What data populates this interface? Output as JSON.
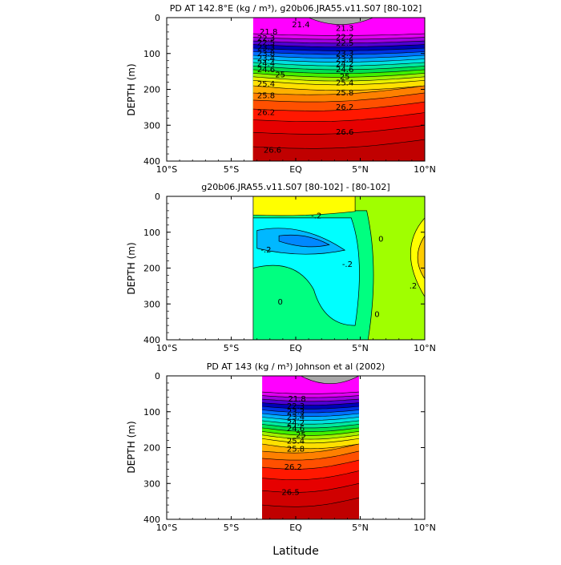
{
  "chart_data": [
    {
      "type": "heatmap",
      "title": "PD AT 142.8°E (kg / m³), g20b06.JRA55.v11.S07 [80-102]",
      "ylabel": "DEPTH (m)",
      "x_tick_labels": [
        "10°S",
        "5°S",
        "EQ",
        "5°N",
        "10°N"
      ],
      "x_ticks": [
        -10,
        -5,
        0,
        5,
        10
      ],
      "xlim": [
        -10,
        10
      ],
      "y_tick_labels": [
        "0",
        "100",
        "200",
        "300",
        "400"
      ],
      "y_ticks": [
        0,
        100,
        200,
        300,
        400
      ],
      "ylim": [
        0,
        400
      ],
      "data_lat_range": [
        -3.3,
        10
      ],
      "top_gray_region": {
        "lat_range": [
          1.0,
          6.0
        ],
        "max_depth": 25
      },
      "bands": [
        {
          "depth": 0,
          "color": "#ff00ff"
        },
        {
          "depth": 45,
          "color": "#e000f0"
        },
        {
          "depth": 55,
          "color": "#a000e0"
        },
        {
          "depth": 65,
          "color": "#5000d0"
        },
        {
          "depth": 75,
          "color": "#0000b8"
        },
        {
          "depth": 85,
          "color": "#0030e0"
        },
        {
          "depth": 95,
          "color": "#0070ff"
        },
        {
          "depth": 105,
          "color": "#00b0ff"
        },
        {
          "depth": 115,
          "color": "#00e0e0"
        },
        {
          "depth": 125,
          "color": "#00e8a0"
        },
        {
          "depth": 135,
          "color": "#00e050"
        },
        {
          "depth": 145,
          "color": "#40f000"
        },
        {
          "depth": 155,
          "color": "#a0f000"
        },
        {
          "depth": 165,
          "color": "#e8f000"
        },
        {
          "depth": 175,
          "color": "#ffe000"
        },
        {
          "depth": 190,
          "color": "#ffb000"
        },
        {
          "depth": 210,
          "color": "#ff8000"
        },
        {
          "depth": 230,
          "color": "#ff5000"
        },
        {
          "depth": 255,
          "color": "#ff1800"
        },
        {
          "depth": 285,
          "color": "#e60000"
        },
        {
          "depth": 320,
          "color": "#d00000"
        },
        {
          "depth": 360,
          "color": "#c00000"
        }
      ],
      "contour_labels": [
        {
          "lat": 0.4,
          "depth": 20,
          "text": "21.4"
        },
        {
          "lat": -2.1,
          "depth": 40,
          "text": "21.8"
        },
        {
          "lat": -2.3,
          "depth": 58,
          "text": "22.3"
        },
        {
          "lat": -2.3,
          "depth": 70,
          "text": "22.5"
        },
        {
          "lat": -2.3,
          "depth": 84,
          "text": "23.3"
        },
        {
          "lat": -2.3,
          "depth": 100,
          "text": "23.8"
        },
        {
          "lat": -2.3,
          "depth": 114,
          "text": "23.4"
        },
        {
          "lat": -2.3,
          "depth": 128,
          "text": "24.4"
        },
        {
          "lat": -2.3,
          "depth": 145,
          "text": "24.6"
        },
        {
          "lat": -1.2,
          "depth": 160,
          "text": "25"
        },
        {
          "lat": -2.3,
          "depth": 185,
          "text": "25.4"
        },
        {
          "lat": -2.3,
          "depth": 218,
          "text": "25.8"
        },
        {
          "lat": -2.3,
          "depth": 265,
          "text": "26.2"
        },
        {
          "lat": -1.8,
          "depth": 370,
          "text": "26.6"
        },
        {
          "lat": 3.8,
          "depth": 30,
          "text": "21.3"
        },
        {
          "lat": 3.8,
          "depth": 55,
          "text": "22.2"
        },
        {
          "lat": 3.8,
          "depth": 72,
          "text": "22.5"
        },
        {
          "lat": 3.8,
          "depth": 100,
          "text": "23.3"
        },
        {
          "lat": 3.8,
          "depth": 116,
          "text": "23.4"
        },
        {
          "lat": 3.8,
          "depth": 130,
          "text": "24.2"
        },
        {
          "lat": 3.8,
          "depth": 145,
          "text": "24.6"
        },
        {
          "lat": 3.8,
          "depth": 165,
          "text": "25"
        },
        {
          "lat": 3.8,
          "depth": 182,
          "text": "25.4"
        },
        {
          "lat": 3.8,
          "depth": 210,
          "text": "25.8"
        },
        {
          "lat": 3.8,
          "depth": 250,
          "text": "26.2"
        },
        {
          "lat": 3.8,
          "depth": 320,
          "text": "26.6"
        }
      ]
    },
    {
      "type": "heatmap",
      "title": "g20b06.JRA55.v11.S07 [80-102] - [80-102]",
      "ylabel": "DEPTH (m)",
      "x_tick_labels": [
        "10°S",
        "5°S",
        "EQ",
        "5°N",
        "10°N"
      ],
      "x_ticks": [
        -10,
        -5,
        0,
        5,
        10
      ],
      "xlim": [
        -10,
        10
      ],
      "y_tick_labels": [
        "0",
        "100",
        "200",
        "300",
        "400"
      ],
      "y_ticks": [
        0,
        100,
        200,
        300,
        400
      ],
      "ylim": [
        0,
        400
      ],
      "data_lat_range": [
        -3.3,
        10
      ],
      "colors": {
        "background": "#a0ff00",
        "near_zero": "#00ff80",
        "negative_1": "#00ffff",
        "negative_2": "#00b8ff",
        "negative_3": "#0088ff",
        "positive_2": "#ffff00",
        "positive_3": "#ffcc00"
      },
      "contour_labels": [
        {
          "lat": 1.6,
          "depth": 55,
          "text": "-.2"
        },
        {
          "lat": -2.3,
          "depth": 150,
          "text": "-.2"
        },
        {
          "lat": 4.0,
          "depth": 190,
          "text": "-.2"
        },
        {
          "lat": 6.6,
          "depth": 120,
          "text": "0"
        },
        {
          "lat": 6.3,
          "depth": 330,
          "text": "0"
        },
        {
          "lat": -1.2,
          "depth": 295,
          "text": "0"
        },
        {
          "lat": 9.1,
          "depth": 250,
          "text": ".2"
        }
      ]
    },
    {
      "type": "heatmap",
      "title": "PD AT 143 (kg / m³) Johnson et al (2002)",
      "ylabel": "DEPTH (m)",
      "xlabel": "Latitude",
      "x_tick_labels": [
        "10°S",
        "5°S",
        "EQ",
        "5°N",
        "10°N"
      ],
      "x_ticks": [
        -10,
        -5,
        0,
        5,
        10
      ],
      "xlim": [
        -10,
        10
      ],
      "y_tick_labels": [
        "0",
        "100",
        "200",
        "300",
        "400"
      ],
      "y_ticks": [
        0,
        100,
        200,
        300,
        400
      ],
      "ylim": [
        0,
        400
      ],
      "data_lat_range": [
        -2.6,
        4.9
      ],
      "top_gray_region": {
        "lat_range": [
          0.4,
          4.9
        ],
        "max_depth": 30
      },
      "bands": [
        {
          "depth": 0,
          "color": "#ff00ff"
        },
        {
          "depth": 45,
          "color": "#e000f0"
        },
        {
          "depth": 55,
          "color": "#a000e0"
        },
        {
          "depth": 65,
          "color": "#5000d0"
        },
        {
          "depth": 75,
          "color": "#0000b8"
        },
        {
          "depth": 85,
          "color": "#0030e0"
        },
        {
          "depth": 95,
          "color": "#0070ff"
        },
        {
          "depth": 105,
          "color": "#00b0ff"
        },
        {
          "depth": 115,
          "color": "#00e0e0"
        },
        {
          "depth": 125,
          "color": "#00e8a0"
        },
        {
          "depth": 135,
          "color": "#00e050"
        },
        {
          "depth": 145,
          "color": "#40f000"
        },
        {
          "depth": 155,
          "color": "#a0f000"
        },
        {
          "depth": 165,
          "color": "#e8f000"
        },
        {
          "depth": 175,
          "color": "#ffe000"
        },
        {
          "depth": 190,
          "color": "#ffb000"
        },
        {
          "depth": 210,
          "color": "#ff8000"
        },
        {
          "depth": 230,
          "color": "#ff5000"
        },
        {
          "depth": 255,
          "color": "#ff1800"
        },
        {
          "depth": 285,
          "color": "#e60000"
        },
        {
          "depth": 320,
          "color": "#d00000"
        },
        {
          "depth": 360,
          "color": "#c00000"
        }
      ],
      "contour_labels": [
        {
          "lat": 0.1,
          "depth": 65,
          "text": "21.8"
        },
        {
          "lat": 0.0,
          "depth": 85,
          "text": "22.3"
        },
        {
          "lat": 0.0,
          "depth": 100,
          "text": "23.3"
        },
        {
          "lat": 0.0,
          "depth": 115,
          "text": "23.4"
        },
        {
          "lat": 0.0,
          "depth": 132,
          "text": "24.2"
        },
        {
          "lat": 0.0,
          "depth": 148,
          "text": "24.6"
        },
        {
          "lat": 0.4,
          "depth": 165,
          "text": "25"
        },
        {
          "lat": 0.0,
          "depth": 182,
          "text": "25.4"
        },
        {
          "lat": 0.0,
          "depth": 205,
          "text": "25.8"
        },
        {
          "lat": -0.2,
          "depth": 255,
          "text": "26.2"
        },
        {
          "lat": -0.4,
          "depth": 325,
          "text": "26.5"
        }
      ]
    }
  ]
}
